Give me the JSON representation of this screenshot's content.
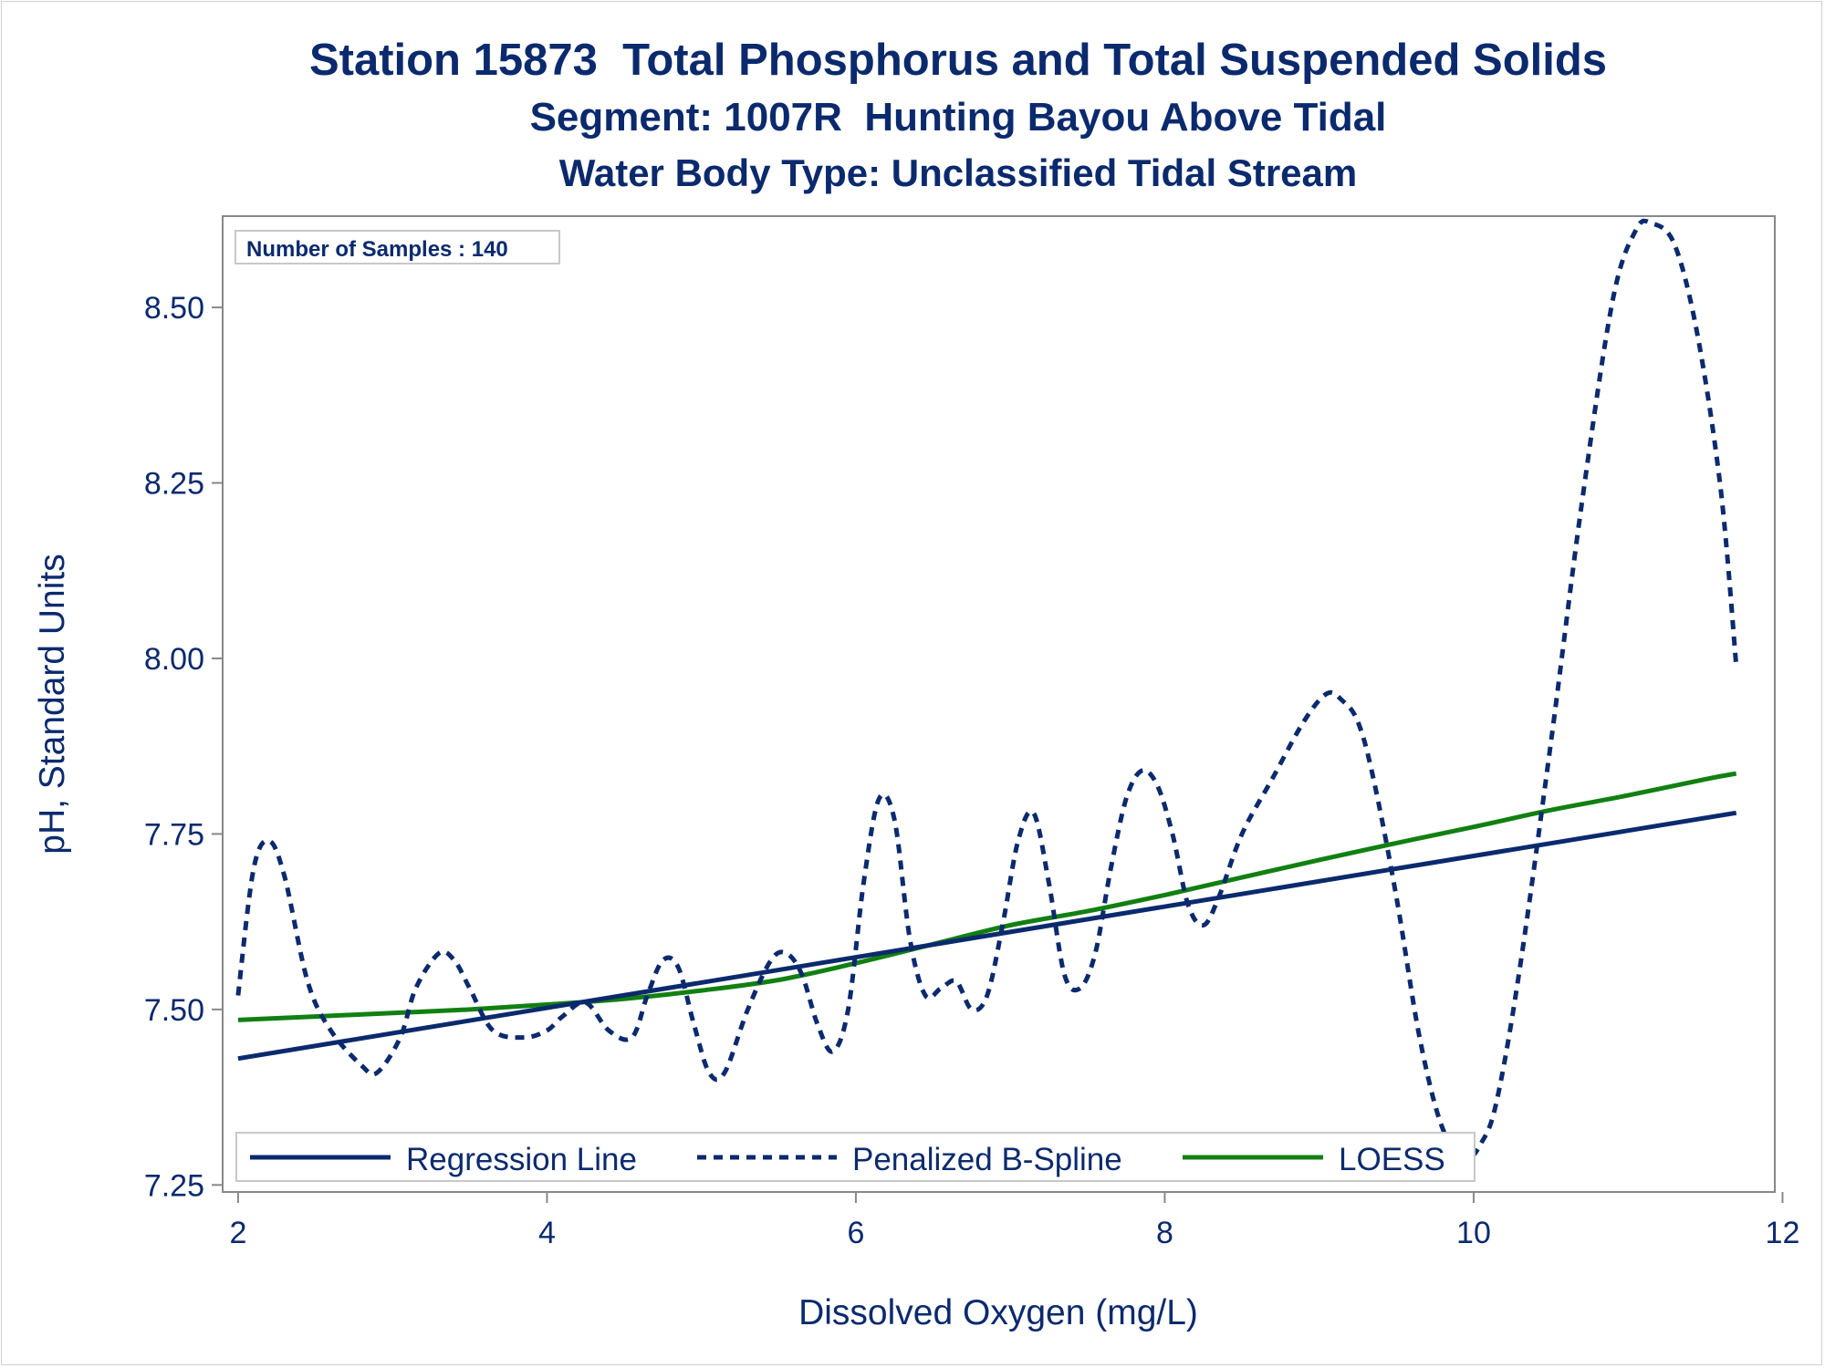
{
  "titles": {
    "line1": "Station 15873  Total Phosphorus and Total Suspended Solids",
    "line2": "Segment: 1007R  Hunting Bayou Above Tidal",
    "line3": "Water Body Type: Unclassified Tidal Stream"
  },
  "inset": {
    "label": "Number of Samples : 140"
  },
  "colors": {
    "title": "#0b2a6e",
    "regression": "#0b2a6e",
    "spline": "#0b2a6e",
    "loess": "#118011",
    "axis": "#888888",
    "text": "#0b2a6e"
  },
  "chart_data": {
    "type": "line",
    "title": "Station 15873  Total Phosphorus and Total Suspended Solids",
    "xlabel": "Dissolved Oxygen (mg/L)",
    "ylabel": "pH, Standard Units",
    "xlim": [
      1.9,
      11.95
    ],
    "ylim": [
      7.24,
      8.63
    ],
    "xticks": [
      2,
      4,
      6,
      8,
      10,
      12
    ],
    "yticks": [
      7.25,
      7.5,
      7.75,
      8.0,
      8.25,
      8.5
    ],
    "ytick_labels": [
      "7.25",
      "7.50",
      "7.75",
      "8.00",
      "8.25",
      "8.50"
    ],
    "grid": false,
    "legend_position": "bottom-inside",
    "series": [
      {
        "name": "Regression Line",
        "style": "solid",
        "x": [
          2.0,
          11.7
        ],
        "y": [
          7.43,
          7.78
        ]
      },
      {
        "name": "Penalized B-Spline",
        "style": "dashed",
        "x": [
          2.0,
          2.1,
          2.2,
          2.3,
          2.45,
          2.6,
          2.8,
          2.9,
          3.05,
          3.15,
          3.3,
          3.4,
          3.5,
          3.65,
          3.85,
          4.0,
          4.1,
          4.25,
          4.4,
          4.55,
          4.65,
          4.75,
          4.85,
          4.95,
          5.05,
          5.15,
          5.3,
          5.45,
          5.55,
          5.65,
          5.75,
          5.85,
          5.95,
          6.05,
          6.15,
          6.25,
          6.35,
          6.45,
          6.55,
          6.65,
          6.75,
          6.85,
          6.95,
          7.05,
          7.15,
          7.25,
          7.35,
          7.45,
          7.55,
          7.65,
          7.75,
          7.85,
          7.95,
          8.05,
          8.15,
          8.25,
          8.35,
          8.5,
          8.7,
          8.9,
          9.05,
          9.15,
          9.25,
          9.35,
          9.5,
          9.65,
          9.8,
          9.95,
          10.05,
          10.15,
          10.3,
          10.5,
          10.7,
          10.9,
          11.05,
          11.15,
          11.3,
          11.45,
          11.6,
          11.7
        ],
        "y": [
          7.52,
          7.7,
          7.74,
          7.69,
          7.54,
          7.47,
          7.42,
          7.41,
          7.46,
          7.53,
          7.58,
          7.57,
          7.53,
          7.47,
          7.46,
          7.47,
          7.49,
          7.51,
          7.47,
          7.46,
          7.52,
          7.57,
          7.56,
          7.48,
          7.41,
          7.41,
          7.5,
          7.57,
          7.58,
          7.55,
          7.48,
          7.44,
          7.5,
          7.68,
          7.8,
          7.77,
          7.6,
          7.52,
          7.53,
          7.54,
          7.5,
          7.52,
          7.62,
          7.74,
          7.78,
          7.68,
          7.55,
          7.53,
          7.58,
          7.7,
          7.8,
          7.84,
          7.82,
          7.75,
          7.65,
          7.62,
          7.66,
          7.75,
          7.83,
          7.91,
          7.95,
          7.94,
          7.91,
          7.83,
          7.66,
          7.46,
          7.33,
          7.29,
          7.31,
          7.37,
          7.56,
          7.88,
          8.22,
          8.51,
          8.61,
          8.62,
          8.59,
          8.46,
          8.24,
          7.99
        ]
      },
      {
        "name": "LOESS",
        "style": "solid",
        "x": [
          2.0,
          2.5,
          3.0,
          3.5,
          4.0,
          4.5,
          5.0,
          5.5,
          6.0,
          6.5,
          7.0,
          7.5,
          8.0,
          8.5,
          9.0,
          9.5,
          10.0,
          10.5,
          11.0,
          11.5,
          11.7
        ],
        "y": [
          7.485,
          7.49,
          7.495,
          7.5,
          7.507,
          7.515,
          7.527,
          7.542,
          7.566,
          7.593,
          7.62,
          7.64,
          7.663,
          7.688,
          7.713,
          7.737,
          7.76,
          7.784,
          7.805,
          7.828,
          7.836
        ]
      }
    ]
  }
}
